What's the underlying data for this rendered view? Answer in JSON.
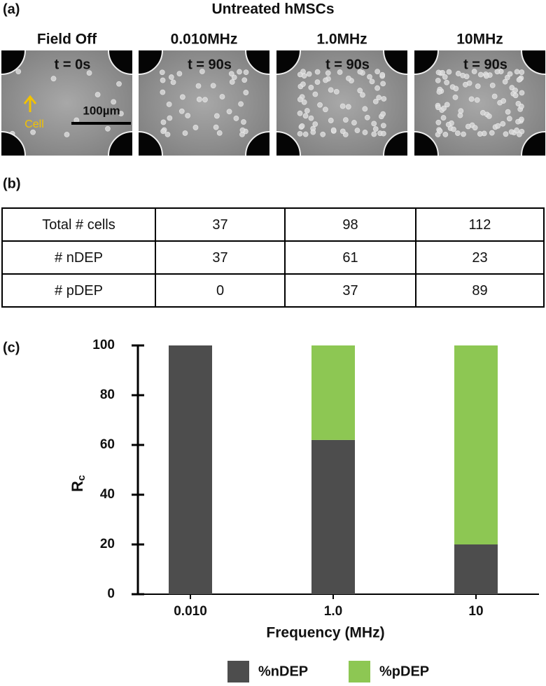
{
  "panel_a": {
    "label": "(a)",
    "title": "Untreated hMSCs",
    "images": [
      {
        "heading": "Field Off",
        "time": "t = 0s"
      },
      {
        "heading": "0.010MHz",
        "time": "t = 90s"
      },
      {
        "heading": "1.0MHz",
        "time": "t = 90s"
      },
      {
        "heading": "10MHz",
        "time": "t = 90s"
      }
    ],
    "scale_bar": "100µm",
    "arrow_label": "Cell"
  },
  "panel_b": {
    "label": "(b)"
  },
  "table": {
    "rows": [
      [
        "Total # cells",
        37,
        98,
        112
      ],
      [
        "# nDEP",
        37,
        61,
        23
      ],
      [
        "# pDEP",
        0,
        37,
        89
      ]
    ]
  },
  "chart_data": {
    "type": "bar",
    "stacked": true,
    "panel_label": "(c)",
    "xlabel": "Frequency (MHz)",
    "ylabel": "R",
    "ylabel_subscript": "c",
    "categories": [
      "0.010",
      "1.0",
      "10"
    ],
    "series": [
      {
        "name": "%nDEP",
        "color": "#4d4d4d",
        "values": [
          100,
          62,
          20
        ]
      },
      {
        "name": "%pDEP",
        "color": "#8dc753",
        "values": [
          0,
          38,
          80
        ]
      }
    ],
    "ylim": [
      0,
      100
    ],
    "yticks": [
      0,
      20,
      40,
      60,
      80,
      100
    ]
  }
}
